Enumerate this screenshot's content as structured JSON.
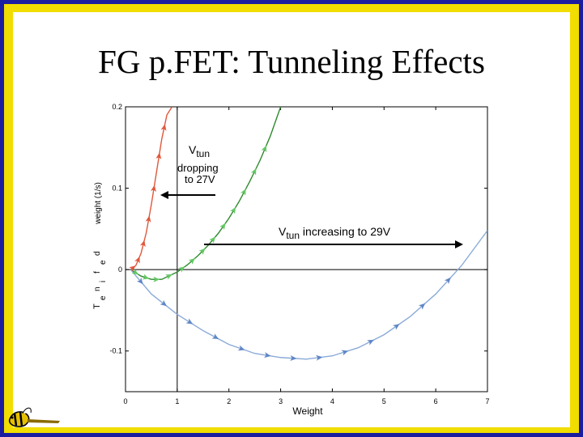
{
  "slide": {
    "title": "FG p.FET: Tunneling Effects"
  },
  "colors": {
    "frame_blue": "#1c1ca0",
    "frame_yellow": "#f2dd00",
    "red": "#e0583c",
    "green": "#2d8a2d",
    "green_arrow": "#64c864",
    "blue": "#8aaad8",
    "blue_arrow": "#5f86c6"
  },
  "chart_data": {
    "type": "line",
    "xlabel": "Weight",
    "ylabel": "weight (1/s)",
    "ylabel_overlay": [
      "d",
      "e",
      "f",
      "i",
      "n",
      "e"
    ],
    "ylabel_overlay2": "T",
    "xlim": [
      0,
      7
    ],
    "ylim": [
      -0.15,
      0.2
    ],
    "xticks": [
      0,
      1,
      2,
      3,
      4,
      5,
      6,
      7
    ],
    "yticks": [
      {
        "value": 0.2,
        "label": "0.2"
      },
      {
        "value": 0.1,
        "label": "0.1"
      },
      {
        "value": 0,
        "label": "0"
      },
      {
        "value": -0.1,
        "label": "-0.1"
      }
    ],
    "reference_lines": {
      "horizontal_y": 0,
      "vertical_x": 1
    },
    "series": [
      {
        "color_key": "red",
        "x": [
          0.1,
          0.2,
          0.3,
          0.4,
          0.5,
          0.6,
          0.7,
          0.8,
          0.9
        ],
        "y": [
          0.0,
          0.005,
          0.02,
          0.045,
          0.08,
          0.12,
          0.16,
          0.19,
          0.2
        ]
      },
      {
        "color_key": "green",
        "x": [
          0.1,
          0.3,
          0.5,
          0.7,
          1.0,
          1.2,
          1.4,
          1.6,
          1.8,
          2.0,
          2.2,
          2.4,
          2.6,
          2.8,
          3.0
        ],
        "y": [
          0.0,
          -0.008,
          -0.012,
          -0.012,
          -0.003,
          0.006,
          0.017,
          0.03,
          0.045,
          0.063,
          0.084,
          0.108,
          0.134,
          0.164,
          0.2
        ]
      },
      {
        "color_key": "blue",
        "x": [
          0.1,
          0.5,
          1.0,
          1.5,
          2.0,
          2.5,
          3.0,
          3.5,
          4.0,
          4.5,
          5.0,
          5.5,
          6.0,
          6.5,
          7.0
        ],
        "y": [
          0.0,
          -0.03,
          -0.055,
          -0.075,
          -0.092,
          -0.103,
          -0.108,
          -0.11,
          -0.106,
          -0.096,
          -0.08,
          -0.058,
          -0.03,
          0.005,
          0.048
        ]
      }
    ],
    "annotations": {
      "left": {
        "v": "V",
        "sub": "tun",
        "line2": "dropping",
        "line3": "to 27V"
      },
      "right": {
        "v": "V",
        "sub": "tun",
        "rest": " increasing to 29V"
      }
    }
  }
}
